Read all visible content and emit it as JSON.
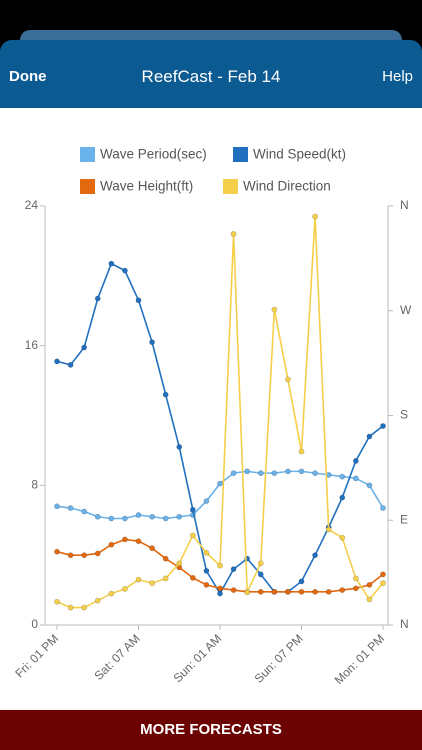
{
  "header": {
    "left_button": "Done",
    "title": "ReefCast - Feb 14",
    "right_button": "Help"
  },
  "footer": {
    "button": "MORE FORECASTS"
  },
  "chart_data": {
    "type": "line",
    "categories": [
      "Fri: 01 PM",
      null,
      null,
      null,
      null,
      null,
      "Sat: 07 AM",
      null,
      null,
      null,
      null,
      null,
      "Sun: 01 AM",
      null,
      null,
      null,
      null,
      null,
      "Sun: 07 PM",
      null,
      null,
      null,
      null,
      null,
      "Mon: 01 PM"
    ],
    "series": [
      {
        "name": "Wave Period(sec)",
        "color": "#6ab2ea",
        "values": [
          6.8,
          6.7,
          6.5,
          6.2,
          6.1,
          6.1,
          6.3,
          6.2,
          6.1,
          6.2,
          6.3,
          7.1,
          8.1,
          8.7,
          8.8,
          8.7,
          8.7,
          8.8,
          8.8,
          8.7,
          8.6,
          8.5,
          8.4,
          8.0,
          6.7
        ]
      },
      {
        "name": "Wind Speed(kt)",
        "color": "#2170c0",
        "values": [
          15.1,
          14.9,
          15.9,
          18.7,
          20.7,
          20.3,
          18.6,
          16.2,
          13.2,
          10.2,
          6.6,
          3.1,
          1.8,
          3.2,
          3.8,
          2.9,
          1.9,
          1.9,
          2.5,
          4.0,
          5.6,
          7.3,
          9.4,
          10.8,
          11.4
        ]
      },
      {
        "name": "Wave Height(ft)",
        "color": "#e3690f",
        "values": [
          4.2,
          4.0,
          4.0,
          4.1,
          4.6,
          4.9,
          4.8,
          4.4,
          3.8,
          3.3,
          2.7,
          2.3,
          2.1,
          2.0,
          1.9,
          1.9,
          1.9,
          1.9,
          1.9,
          1.9,
          1.9,
          2.0,
          2.1,
          2.3,
          2.9
        ]
      },
      {
        "name": "Wind Direction",
        "color": "#f5cf4a",
        "axis": "y2",
        "values": [
          20,
          15,
          15,
          21,
          27,
          31,
          39,
          36,
          40,
          53,
          77,
          62,
          51,
          336,
          28,
          53,
          271,
          211,
          149,
          351,
          82,
          75,
          40,
          22,
          36
        ]
      }
    ],
    "ylim": [
      0,
      24
    ],
    "yticks": [
      0,
      8,
      16,
      24
    ],
    "y2lim": [
      0,
      360
    ],
    "y2ticks": [
      {
        "value": 0,
        "label": "N"
      },
      {
        "value": 90,
        "label": "E"
      },
      {
        "value": 180,
        "label": "S"
      },
      {
        "value": 270,
        "label": "W"
      },
      {
        "value": 360,
        "label": "N"
      }
    ],
    "legend": "top"
  }
}
